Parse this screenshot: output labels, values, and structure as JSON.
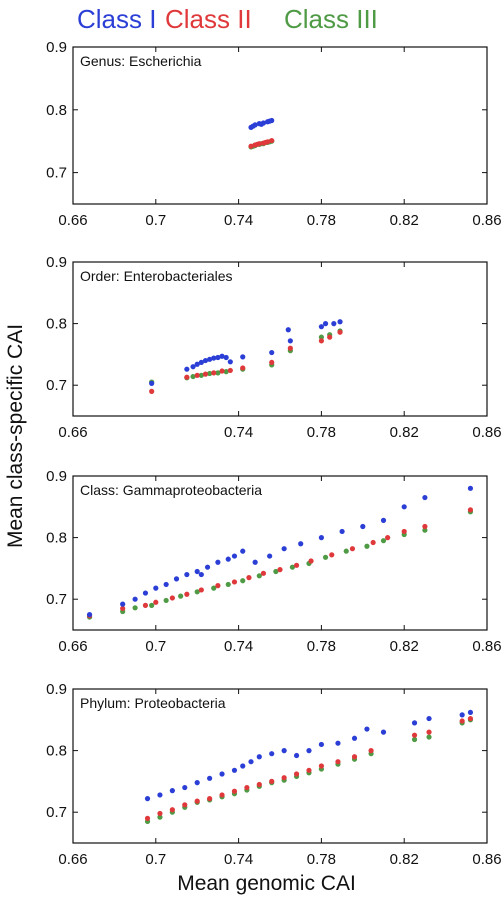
{
  "legend": [
    {
      "label": "Class I",
      "color": "#2b3fd6"
    },
    {
      "label": "Class II",
      "color": "#e0393b"
    },
    {
      "label": "Class III",
      "color": "#4f9a45"
    }
  ],
  "ylabel": "Mean class-specific CAI",
  "xlabel": "Mean genomic CAI",
  "chart_data": [
    {
      "type": "scatter",
      "panel_label": "Genus: Escherichia",
      "xlim": [
        0.66,
        0.86
      ],
      "ylim": [
        0.65,
        0.9
      ],
      "xticks": [
        "0.66",
        "0.7",
        "0.74",
        "0.78",
        "0.82",
        "0.86"
      ],
      "yticks": [
        "0.7",
        "0.8",
        "0.9"
      ],
      "series": [
        {
          "name": "Class I",
          "x": [
            0.746,
            0.748,
            0.75,
            0.752,
            0.754,
            0.756,
            0.747,
            0.751,
            0.755
          ],
          "y": [
            0.772,
            0.776,
            0.778,
            0.779,
            0.781,
            0.783,
            0.774,
            0.777,
            0.782
          ]
        },
        {
          "name": "Class II",
          "x": [
            0.746,
            0.748,
            0.75,
            0.752,
            0.754,
            0.756,
            0.749,
            0.753
          ],
          "y": [
            0.742,
            0.744,
            0.746,
            0.747,
            0.749,
            0.751,
            0.745,
            0.748
          ]
        },
        {
          "name": "Class III",
          "x": [
            0.746,
            0.748,
            0.75,
            0.752,
            0.754,
            0.756,
            0.747,
            0.751,
            0.755
          ],
          "y": [
            0.741,
            0.743,
            0.745,
            0.746,
            0.748,
            0.75,
            0.742,
            0.746,
            0.749
          ]
        }
      ]
    },
    {
      "type": "scatter",
      "panel_label": "Order: Enterobacteriales",
      "xlim": [
        0.66,
        0.86
      ],
      "ylim": [
        0.65,
        0.9
      ],
      "xticks": [
        "0.66",
        "0.74",
        "0.78",
        "0.82",
        "0.86"
      ],
      "yticks": [
        "0.7",
        "0.8",
        "0.9"
      ],
      "series": [
        {
          "name": "Class I",
          "x": [
            0.698,
            0.715,
            0.718,
            0.72,
            0.722,
            0.724,
            0.726,
            0.728,
            0.73,
            0.732,
            0.734,
            0.736,
            0.742,
            0.756,
            0.764,
            0.765,
            0.78,
            0.782,
            0.786,
            0.789
          ],
          "y": [
            0.703,
            0.726,
            0.73,
            0.734,
            0.737,
            0.74,
            0.742,
            0.744,
            0.745,
            0.747,
            0.745,
            0.738,
            0.746,
            0.753,
            0.79,
            0.772,
            0.795,
            0.8,
            0.8,
            0.803
          ]
        },
        {
          "name": "Class II",
          "x": [
            0.698,
            0.715,
            0.72,
            0.724,
            0.728,
            0.732,
            0.736,
            0.742,
            0.756,
            0.765,
            0.78,
            0.784,
            0.789
          ],
          "y": [
            0.69,
            0.713,
            0.716,
            0.718,
            0.72,
            0.723,
            0.724,
            0.728,
            0.737,
            0.76,
            0.772,
            0.778,
            0.786
          ]
        },
        {
          "name": "Class III",
          "x": [
            0.698,
            0.715,
            0.718,
            0.722,
            0.726,
            0.73,
            0.734,
            0.742,
            0.756,
            0.765,
            0.78,
            0.784,
            0.789
          ],
          "y": [
            0.705,
            0.712,
            0.714,
            0.716,
            0.719,
            0.72,
            0.722,
            0.726,
            0.733,
            0.756,
            0.778,
            0.782,
            0.788
          ]
        }
      ]
    },
    {
      "type": "scatter",
      "panel_label": "Class: Gammaproteobacteria",
      "xlim": [
        0.66,
        0.86
      ],
      "ylim": [
        0.65,
        0.9
      ],
      "xticks": [
        "0.66",
        "0.7",
        "0.74",
        "0.78",
        "0.82",
        "0.86"
      ],
      "yticks": [
        "0.7",
        "0.8",
        "0.9"
      ],
      "series": [
        {
          "name": "Class I",
          "x": [
            0.668,
            0.684,
            0.69,
            0.695,
            0.7,
            0.705,
            0.71,
            0.715,
            0.72,
            0.722,
            0.725,
            0.73,
            0.735,
            0.738,
            0.742,
            0.748,
            0.755,
            0.762,
            0.77,
            0.78,
            0.79,
            0.8,
            0.81,
            0.82,
            0.83,
            0.852
          ],
          "y": [
            0.675,
            0.692,
            0.7,
            0.71,
            0.718,
            0.724,
            0.733,
            0.74,
            0.745,
            0.74,
            0.752,
            0.76,
            0.765,
            0.77,
            0.778,
            0.76,
            0.77,
            0.782,
            0.79,
            0.8,
            0.81,
            0.818,
            0.828,
            0.85,
            0.865,
            0.88
          ]
        },
        {
          "name": "Class II",
          "x": [
            0.668,
            0.684,
            0.695,
            0.7,
            0.708,
            0.715,
            0.722,
            0.73,
            0.738,
            0.745,
            0.752,
            0.76,
            0.768,
            0.775,
            0.785,
            0.795,
            0.805,
            0.812,
            0.82,
            0.83,
            0.852
          ],
          "y": [
            0.673,
            0.685,
            0.69,
            0.695,
            0.702,
            0.708,
            0.715,
            0.722,
            0.728,
            0.735,
            0.742,
            0.748,
            0.755,
            0.762,
            0.772,
            0.782,
            0.792,
            0.8,
            0.81,
            0.818,
            0.845
          ]
        },
        {
          "name": "Class III",
          "x": [
            0.668,
            0.684,
            0.69,
            0.698,
            0.705,
            0.712,
            0.72,
            0.728,
            0.735,
            0.742,
            0.75,
            0.758,
            0.766,
            0.774,
            0.782,
            0.792,
            0.802,
            0.81,
            0.82,
            0.83,
            0.852
          ],
          "y": [
            0.671,
            0.68,
            0.686,
            0.69,
            0.698,
            0.705,
            0.712,
            0.718,
            0.724,
            0.73,
            0.738,
            0.745,
            0.752,
            0.758,
            0.768,
            0.778,
            0.786,
            0.795,
            0.805,
            0.812,
            0.842
          ]
        }
      ]
    },
    {
      "type": "scatter",
      "panel_label": "Phylum: Proteobacteria",
      "xlim": [
        0.66,
        0.86
      ],
      "ylim": [
        0.65,
        0.9
      ],
      "xticks": [
        "0.66",
        "0.7",
        "0.74",
        "0.78",
        "0.82",
        "0.86"
      ],
      "yticks": [
        "0.7",
        "0.8",
        "0.9"
      ],
      "series": [
        {
          "name": "Class I",
          "x": [
            0.696,
            0.702,
            0.708,
            0.714,
            0.72,
            0.726,
            0.732,
            0.738,
            0.742,
            0.746,
            0.75,
            0.756,
            0.762,
            0.768,
            0.774,
            0.78,
            0.788,
            0.796,
            0.802,
            0.81,
            0.825,
            0.832,
            0.848,
            0.852
          ],
          "y": [
            0.722,
            0.728,
            0.735,
            0.74,
            0.748,
            0.755,
            0.762,
            0.768,
            0.775,
            0.782,
            0.79,
            0.795,
            0.8,
            0.792,
            0.8,
            0.81,
            0.812,
            0.82,
            0.835,
            0.83,
            0.845,
            0.852,
            0.858,
            0.862
          ]
        },
        {
          "name": "Class II",
          "x": [
            0.696,
            0.702,
            0.708,
            0.714,
            0.72,
            0.726,
            0.732,
            0.738,
            0.744,
            0.75,
            0.756,
            0.762,
            0.768,
            0.774,
            0.78,
            0.788,
            0.796,
            0.804,
            0.825,
            0.832,
            0.848,
            0.852
          ],
          "y": [
            0.69,
            0.698,
            0.704,
            0.712,
            0.718,
            0.722,
            0.728,
            0.734,
            0.74,
            0.745,
            0.75,
            0.756,
            0.762,
            0.768,
            0.775,
            0.782,
            0.79,
            0.8,
            0.825,
            0.83,
            0.848,
            0.852
          ]
        },
        {
          "name": "Class III",
          "x": [
            0.696,
            0.702,
            0.708,
            0.714,
            0.72,
            0.726,
            0.732,
            0.738,
            0.744,
            0.75,
            0.756,
            0.762,
            0.768,
            0.774,
            0.78,
            0.788,
            0.796,
            0.804,
            0.825,
            0.832,
            0.848,
            0.852
          ],
          "y": [
            0.685,
            0.692,
            0.7,
            0.708,
            0.716,
            0.72,
            0.725,
            0.73,
            0.736,
            0.742,
            0.748,
            0.752,
            0.758,
            0.764,
            0.77,
            0.778,
            0.786,
            0.795,
            0.818,
            0.822,
            0.845,
            0.85
          ]
        }
      ]
    }
  ]
}
